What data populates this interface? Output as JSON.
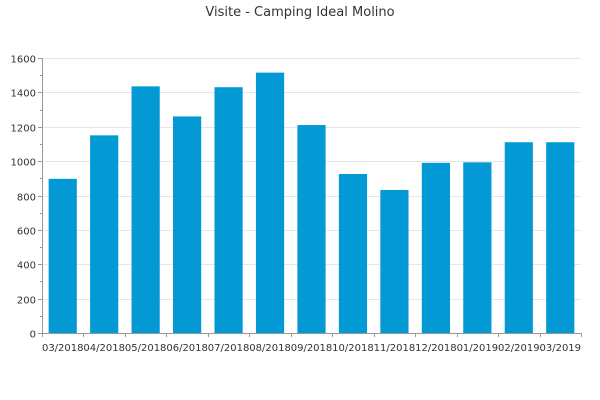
{
  "chart_data": {
    "type": "bar",
    "title": "Visite - Camping Ideal Molino",
    "xlabel": "",
    "ylabel": "",
    "categories": [
      "03/2018",
      "04/2018",
      "05/2018",
      "06/2018",
      "07/2018",
      "08/2018",
      "09/2018",
      "10/2018",
      "11/2018",
      "12/2018",
      "01/2019",
      "02/2019",
      "03/2019"
    ],
    "series": [
      {
        "name": "",
        "values": [
          897,
          1150,
          1435,
          1260,
          1430,
          1515,
          1210,
          925,
          832,
          990,
          993,
          1110,
          1110
        ]
      }
    ],
    "ylim": [
      0,
      1600
    ],
    "yticks": [
      0,
      200,
      400,
      600,
      800,
      1000,
      1200,
      1400,
      1600
    ],
    "ytick_labels": [
      "0",
      "200",
      "400",
      "600",
      "800",
      "1000",
      "1200",
      "1400",
      "1600"
    ],
    "grid": true,
    "colors": {
      "bar": "#0399d4",
      "grid": "#e6e6e6",
      "axis": "#999999",
      "text": "#333333"
    }
  }
}
